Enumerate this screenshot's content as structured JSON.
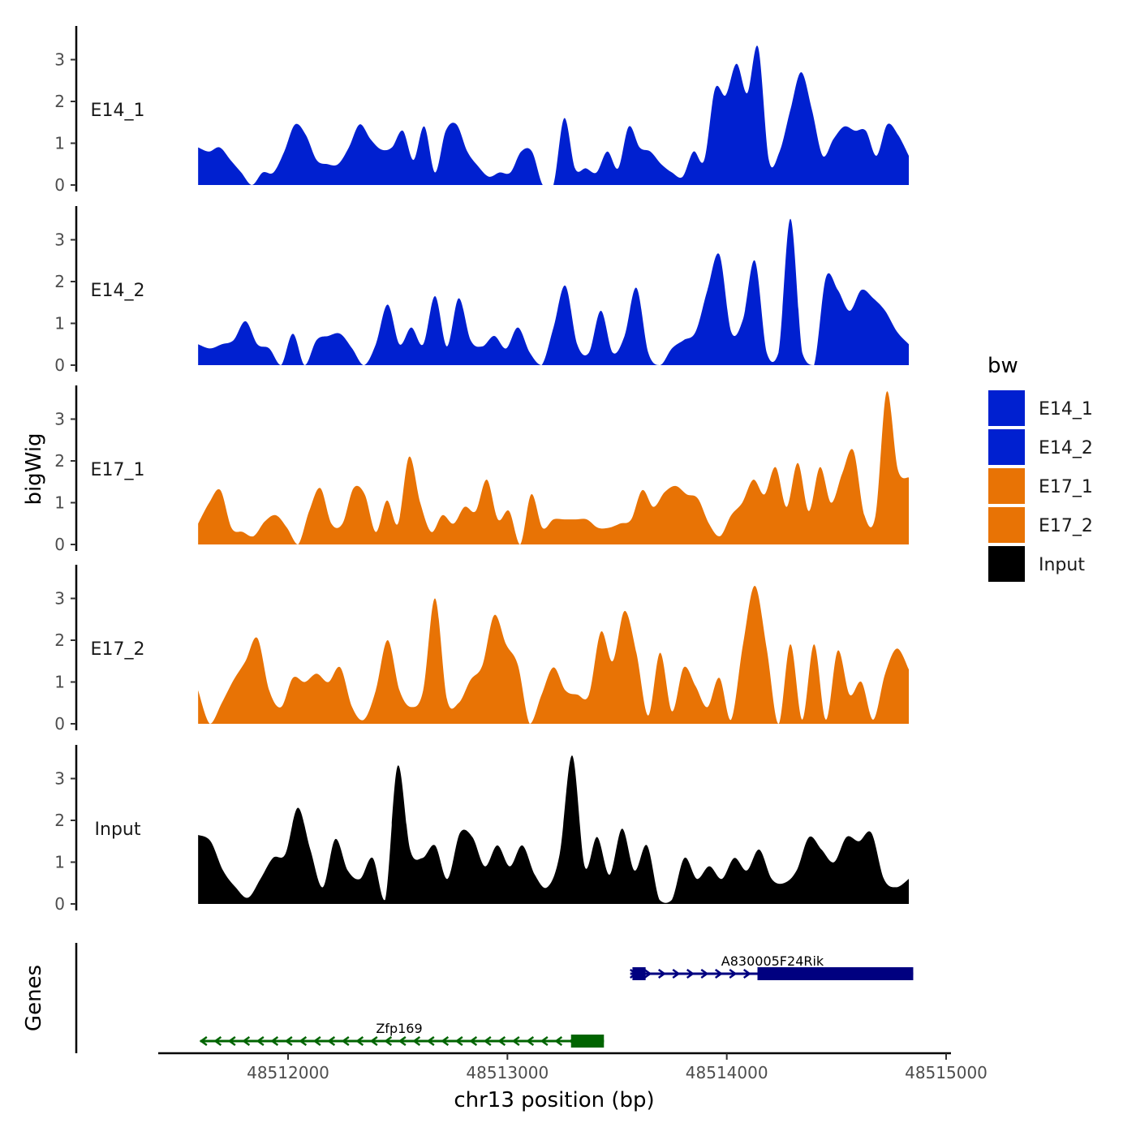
{
  "chart_data": {
    "type": "area",
    "title": "",
    "ylabel": "bigWig",
    "xlabel": "chr13 position (bp)",
    "genes_label": "Genes",
    "ylim": [
      0,
      3.8
    ],
    "yticks": [
      0,
      1,
      2,
      3
    ],
    "xlim": [
      48511300,
      48515000
    ],
    "xticks": [
      48512000,
      48513000,
      48514000,
      48515000
    ],
    "xtick_labels": [
      "48512000",
      "48513000",
      "48514000",
      "48515000"
    ],
    "x_start": 48511590,
    "x_end": 48514830,
    "legend": {
      "title": "bw",
      "entries": [
        {
          "name": "E14_1",
          "color": "#0020D0"
        },
        {
          "name": "E14_2",
          "color": "#0020D0"
        },
        {
          "name": "E17_1",
          "color": "#E87305"
        },
        {
          "name": "E17_2",
          "color": "#E87305"
        },
        {
          "name": "Input",
          "color": "#000000"
        }
      ]
    },
    "series": [
      {
        "name": "E14_1",
        "color": "#0020D0",
        "values": [
          0.9,
          0.8,
          0.9,
          0.6,
          0.3,
          0.0,
          0.3,
          0.3,
          0.8,
          1.45,
          1.2,
          0.6,
          0.5,
          0.5,
          0.9,
          1.45,
          1.1,
          0.85,
          0.9,
          1.3,
          0.6,
          1.4,
          0.3,
          1.3,
          1.45,
          0.8,
          0.45,
          0.2,
          0.3,
          0.3,
          0.8,
          0.8,
          0.0,
          0.0,
          1.6,
          0.4,
          0.4,
          0.3,
          0.8,
          0.4,
          1.4,
          0.9,
          0.8,
          0.5,
          0.3,
          0.2,
          0.8,
          0.6,
          2.3,
          2.15,
          2.9,
          2.2,
          3.3,
          0.6,
          0.8,
          1.8,
          2.7,
          1.8,
          0.7,
          1.1,
          1.4,
          1.3,
          1.3,
          0.7,
          1.45,
          1.2,
          0.7
        ]
      },
      {
        "name": "E14_2",
        "color": "#0020D0",
        "values": [
          0.5,
          0.4,
          0.5,
          0.6,
          1.05,
          0.5,
          0.4,
          0.0,
          0.75,
          0.0,
          0.6,
          0.7,
          0.75,
          0.4,
          0.0,
          0.5,
          1.45,
          0.5,
          0.9,
          0.5,
          1.65,
          0.45,
          1.6,
          0.6,
          0.45,
          0.7,
          0.4,
          0.9,
          0.3,
          0.0,
          0.9,
          1.9,
          0.5,
          0.3,
          1.3,
          0.3,
          0.7,
          1.85,
          0.3,
          0.0,
          0.4,
          0.6,
          0.8,
          1.8,
          2.65,
          0.8,
          1.1,
          2.5,
          0.3,
          0.3,
          3.5,
          0.3,
          0.0,
          2.1,
          1.8,
          1.3,
          1.8,
          1.6,
          1.3,
          0.8,
          0.5
        ]
      },
      {
        "name": "E17_1",
        "color": "#E87305",
        "values": [
          0.5,
          1.0,
          1.3,
          0.4,
          0.3,
          0.2,
          0.55,
          0.7,
          0.4,
          0.0,
          0.8,
          1.35,
          0.5,
          0.5,
          1.35,
          1.2,
          0.3,
          1.05,
          0.5,
          2.1,
          1.0,
          0.3,
          0.7,
          0.5,
          0.9,
          0.8,
          1.55,
          0.6,
          0.8,
          0.0,
          1.2,
          0.4,
          0.6,
          0.6,
          0.6,
          0.6,
          0.4,
          0.4,
          0.5,
          0.6,
          1.3,
          0.9,
          1.25,
          1.4,
          1.2,
          1.1,
          0.5,
          0.2,
          0.7,
          1.0,
          1.55,
          1.2,
          1.85,
          0.9,
          1.95,
          0.8,
          1.85,
          1.0,
          1.7,
          2.25,
          0.7,
          0.7,
          3.65,
          1.8,
          1.6
        ]
      },
      {
        "name": "E17_2",
        "color": "#E87305",
        "values": [
          0.8,
          0.0,
          0.5,
          1.05,
          1.5,
          2.05,
          0.8,
          0.4,
          1.1,
          1.0,
          1.2,
          1.0,
          1.35,
          0.4,
          0.1,
          0.8,
          2.0,
          0.8,
          0.4,
          0.8,
          3.0,
          0.6,
          0.5,
          1.05,
          1.4,
          2.6,
          1.9,
          1.4,
          0.0,
          0.7,
          1.35,
          0.8,
          0.7,
          0.7,
          2.2,
          1.5,
          2.7,
          1.7,
          0.2,
          1.7,
          0.3,
          1.35,
          0.9,
          0.4,
          1.1,
          0.1,
          1.9,
          3.3,
          1.8,
          0.0,
          1.9,
          0.1,
          1.9,
          0.1,
          1.75,
          0.7,
          1.0,
          0.1,
          1.2,
          1.8,
          1.3
        ]
      },
      {
        "name": "Input",
        "color": "#000000",
        "values": [
          1.65,
          1.5,
          0.8,
          0.4,
          0.15,
          0.6,
          1.1,
          1.2,
          2.3,
          1.3,
          0.4,
          1.55,
          0.8,
          0.6,
          1.1,
          0.1,
          3.3,
          1.3,
          1.1,
          1.4,
          0.6,
          1.7,
          1.6,
          0.9,
          1.4,
          0.9,
          1.4,
          0.7,
          0.4,
          1.2,
          3.55,
          0.9,
          1.6,
          0.7,
          1.8,
          0.8,
          1.4,
          0.1,
          0.1,
          1.1,
          0.6,
          0.9,
          0.6,
          1.1,
          0.8,
          1.3,
          0.6,
          0.5,
          0.8,
          1.6,
          1.3,
          1.0,
          1.6,
          1.5,
          1.7,
          0.6,
          0.4,
          0.6
        ]
      }
    ],
    "genes": [
      {
        "name": "A830005F24Rik",
        "strand": "+",
        "start": 48513560,
        "end": 48514850,
        "color": "#000080",
        "exons": [
          {
            "start": 48513570,
            "end": 48513630
          },
          {
            "start": 48514140,
            "end": 48514850
          }
        ]
      },
      {
        "name": "Zfp169",
        "strand": "-",
        "start": 48511600,
        "end": 48513440,
        "color": "#006400",
        "exons": [
          {
            "start": 48513290,
            "end": 48513440
          }
        ]
      }
    ]
  }
}
